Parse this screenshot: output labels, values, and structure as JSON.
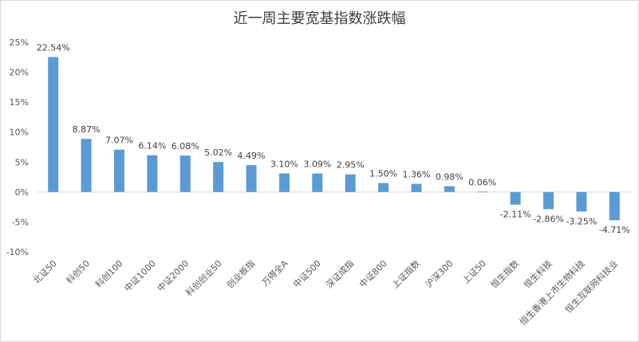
{
  "chart_data": {
    "type": "bar",
    "title": "近一周主要宽基指数涨跌幅",
    "xlabel": "",
    "ylabel": "",
    "ylim": [
      -10,
      25
    ],
    "yticks": [
      "-10%",
      "-5%",
      "0%",
      "5%",
      "10%",
      "15%",
      "20%",
      "25%"
    ],
    "ytick_values": [
      -10,
      -5,
      0,
      5,
      10,
      15,
      20,
      25
    ],
    "grid": false,
    "legend": "none",
    "bar_color": "#5B9BD5",
    "categories": [
      "北证50",
      "科创50",
      "科创100",
      "中证1000",
      "中证2000",
      "科创创业50",
      "创业板指",
      "万得全A",
      "中证500",
      "深证成指",
      "中证800",
      "上证指数",
      "沪深300",
      "上证50",
      "恒生指数",
      "恒生科技",
      "恒生香港上市生物科技",
      "恒生互联网科技业"
    ],
    "values": [
      22.54,
      8.87,
      7.07,
      6.14,
      6.08,
      5.02,
      4.49,
      3.1,
      3.09,
      2.95,
      1.5,
      1.36,
      0.98,
      0.06,
      -2.11,
      -2.86,
      -3.25,
      -4.71
    ],
    "data_labels": [
      "22.54%",
      "8.87%",
      "7.07%",
      "6.14%",
      "6.08%",
      "5.02%",
      "4.49%",
      "3.10%",
      "3.09%",
      "2.95%",
      "1.50%",
      "1.36%",
      "0.98%",
      "0.06%",
      "-2.11%",
      "-2.86%",
      "-3.25%",
      "-4.71%"
    ]
  }
}
